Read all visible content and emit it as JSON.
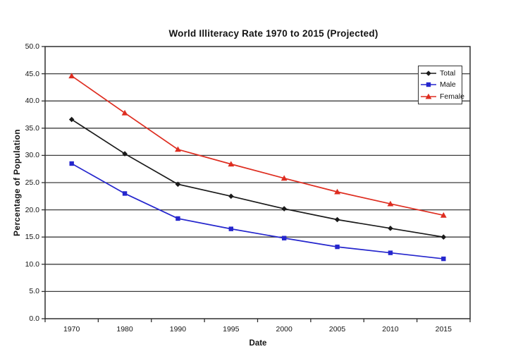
{
  "window": {
    "background": "#ffffff"
  },
  "chart_data": {
    "type": "line",
    "title": "World Illiteracy Rate 1970 to 2015 (Projected)",
    "xlabel": "Date",
    "ylabel": "Percentage of Population",
    "categories": [
      "1970",
      "1980",
      "1990",
      "1995",
      "2000",
      "2005",
      "2010",
      "2015"
    ],
    "yticks": [
      "0.0",
      "5.0",
      "10.0",
      "15.0",
      "20.0",
      "25.0",
      "30.0",
      "35.0",
      "40.0",
      "45.0",
      "50.0"
    ],
    "ylim": [
      0,
      50
    ],
    "ytick_step": 5,
    "grid": true,
    "legend_position": "top-right-inside",
    "axis_color": "#2e2e2e",
    "grid_color": "#3d3d3d",
    "text_color": "#141414",
    "series": [
      {
        "name": "Total",
        "color": "#1a1a1a",
        "marker": "diamond",
        "values": [
          36.6,
          30.3,
          24.7,
          22.5,
          20.2,
          18.2,
          16.6,
          15.0
        ]
      },
      {
        "name": "Male",
        "color": "#2526cd",
        "marker": "square",
        "values": [
          28.5,
          23.0,
          18.4,
          16.5,
          14.8,
          13.2,
          12.1,
          11.0
        ]
      },
      {
        "name": "Female",
        "color": "#de2d20",
        "marker": "triangle",
        "values": [
          44.6,
          37.8,
          31.1,
          28.4,
          25.8,
          23.3,
          21.1,
          19.0
        ]
      }
    ]
  }
}
